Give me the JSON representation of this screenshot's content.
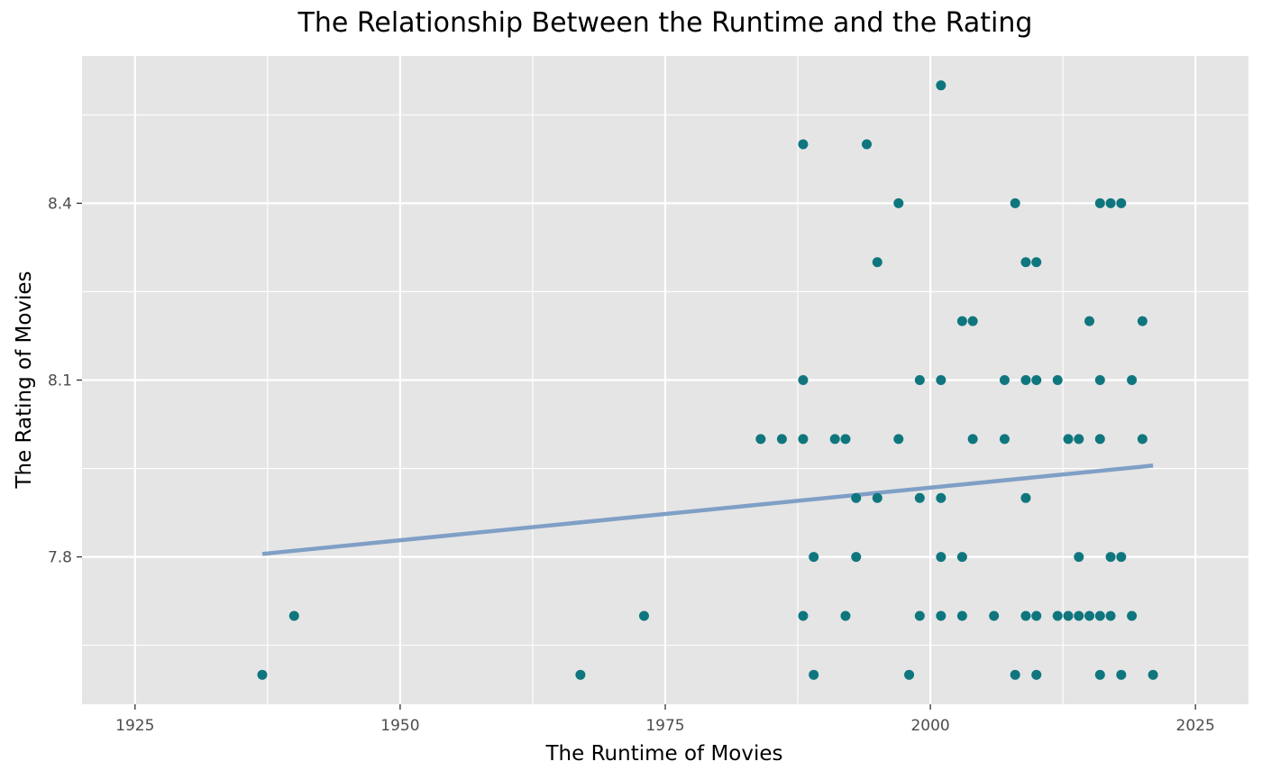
{
  "chart_data": {
    "type": "scatter",
    "title": "The Relationship Between the Runtime and the Rating",
    "xlabel": "The Runtime of Movies",
    "ylabel": "The Rating of Movies",
    "xlim": [
      1920,
      2030
    ],
    "ylim": [
      7.55,
      8.65
    ],
    "x_ticks": [
      1925,
      1950,
      1975,
      2000,
      2025
    ],
    "y_ticks": [
      7.8,
      8.1,
      8.4
    ],
    "grid": true,
    "point_color": "#0f767e",
    "line_color": "#7f9fc6",
    "panel_background": "#e5e5e5",
    "grid_color": "#ffffff",
    "points": [
      [
        2001,
        8.6
      ],
      [
        1988,
        8.5
      ],
      [
        1994,
        8.5
      ],
      [
        1997,
        8.4
      ],
      [
        2008,
        8.4
      ],
      [
        2016,
        8.4
      ],
      [
        2017,
        8.4
      ],
      [
        2018,
        8.4
      ],
      [
        1995,
        8.3
      ],
      [
        2009,
        8.3
      ],
      [
        2010,
        8.3
      ],
      [
        2003,
        8.2
      ],
      [
        2004,
        8.2
      ],
      [
        2015,
        8.2
      ],
      [
        2020,
        8.2
      ],
      [
        1988,
        8.1
      ],
      [
        1999,
        8.1
      ],
      [
        2001,
        8.1
      ],
      [
        2007,
        8.1
      ],
      [
        2009,
        8.1
      ],
      [
        2010,
        8.1
      ],
      [
        2012,
        8.1
      ],
      [
        2016,
        8.1
      ],
      [
        2019,
        8.1
      ],
      [
        1984,
        8.0
      ],
      [
        1986,
        8.0
      ],
      [
        1988,
        8.0
      ],
      [
        1991,
        8.0
      ],
      [
        1992,
        8.0
      ],
      [
        1997,
        8.0
      ],
      [
        2004,
        8.0
      ],
      [
        2007,
        8.0
      ],
      [
        2013,
        8.0
      ],
      [
        2014,
        8.0
      ],
      [
        2016,
        8.0
      ],
      [
        2020,
        8.0
      ],
      [
        1993,
        7.9
      ],
      [
        1995,
        7.9
      ],
      [
        1999,
        7.9
      ],
      [
        2001,
        7.9
      ],
      [
        2009,
        7.9
      ],
      [
        1989,
        7.8
      ],
      [
        1993,
        7.8
      ],
      [
        2001,
        7.8
      ],
      [
        2003,
        7.8
      ],
      [
        2014,
        7.8
      ],
      [
        2017,
        7.8
      ],
      [
        2018,
        7.8
      ],
      [
        1940,
        7.7
      ],
      [
        1973,
        7.7
      ],
      [
        1988,
        7.7
      ],
      [
        1992,
        7.7
      ],
      [
        1999,
        7.7
      ],
      [
        2001,
        7.7
      ],
      [
        2003,
        7.7
      ],
      [
        2006,
        7.7
      ],
      [
        2009,
        7.7
      ],
      [
        2010,
        7.7
      ],
      [
        2012,
        7.7
      ],
      [
        2013,
        7.7
      ],
      [
        2014,
        7.7
      ],
      [
        2015,
        7.7
      ],
      [
        2016,
        7.7
      ],
      [
        2017,
        7.7
      ],
      [
        2019,
        7.7
      ],
      [
        1937,
        7.6
      ],
      [
        1967,
        7.6
      ],
      [
        1989,
        7.6
      ],
      [
        1998,
        7.6
      ],
      [
        2008,
        7.6
      ],
      [
        2010,
        7.6
      ],
      [
        2016,
        7.6
      ],
      [
        2018,
        7.6
      ],
      [
        2021,
        7.6
      ]
    ],
    "trend_line": {
      "x": [
        1937,
        2021
      ],
      "y": [
        7.805,
        7.955
      ]
    }
  }
}
